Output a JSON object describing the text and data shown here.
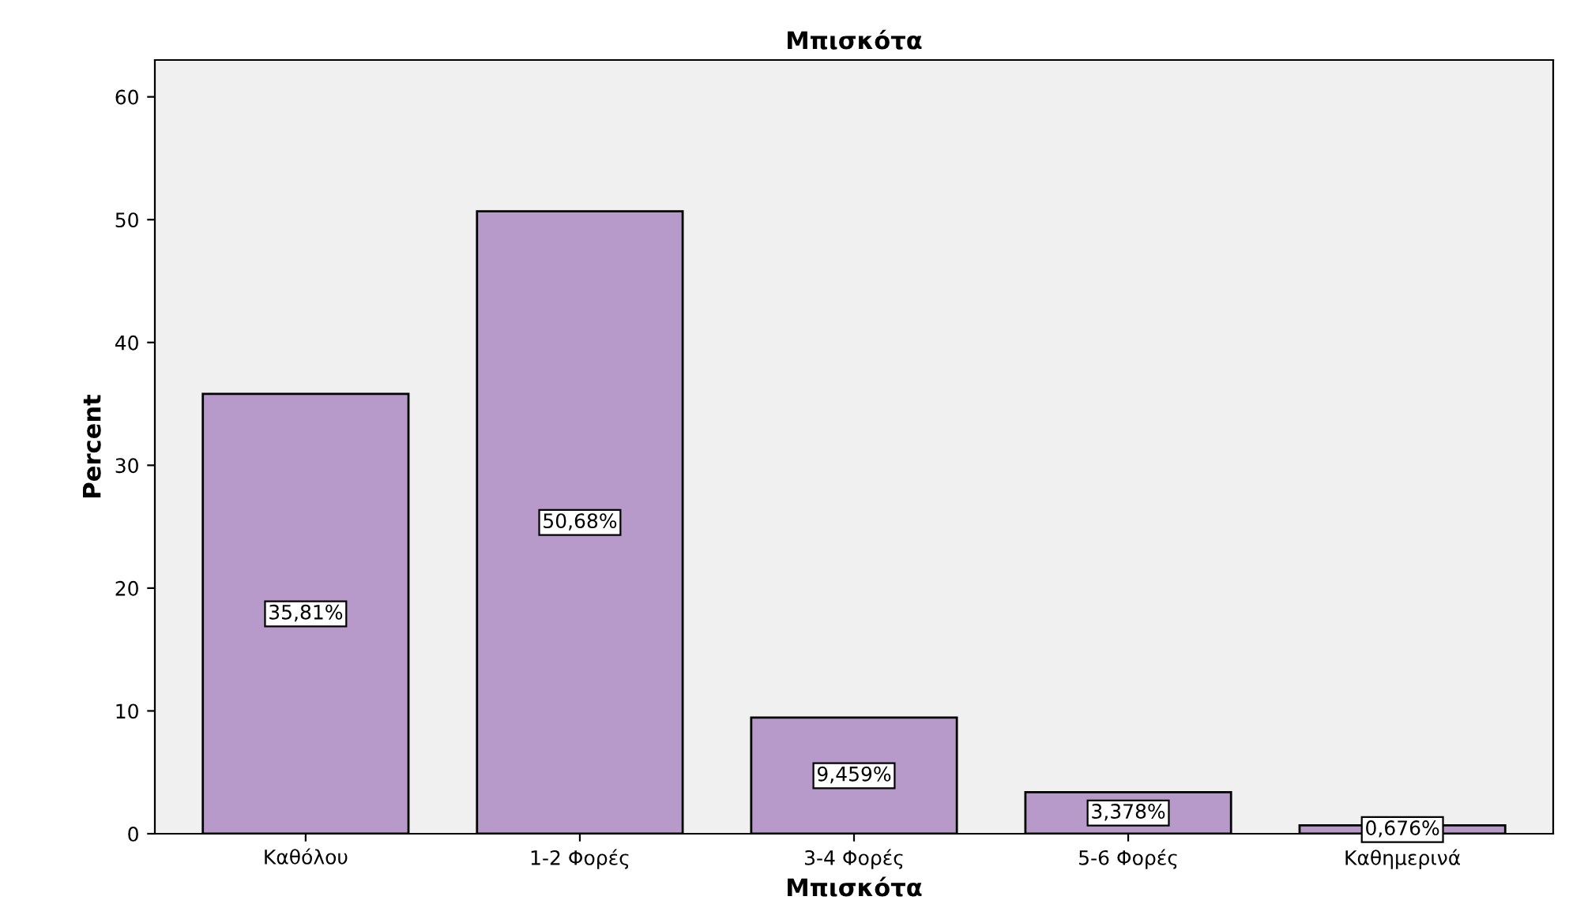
{
  "chart_data": {
    "type": "bar",
    "title": "Μπισκότα",
    "xlabel": "Μπισκότα",
    "ylabel": "Percent",
    "categories": [
      "Καθόλου",
      "1-2 Φορές",
      "3-4 Φορές",
      "5-6 Φορές",
      "Καθημερινά"
    ],
    "values": [
      35.81,
      50.68,
      9.459,
      3.378,
      0.676
    ],
    "value_labels": [
      "35,81%",
      "50,68%",
      "9,459%",
      "3,378%",
      "0,676%"
    ],
    "color": "#b89aca",
    "ylim": [
      0,
      63
    ],
    "yticks": [
      0,
      10,
      20,
      30,
      40,
      50,
      60
    ],
    "grid": false,
    "legend": false
  }
}
